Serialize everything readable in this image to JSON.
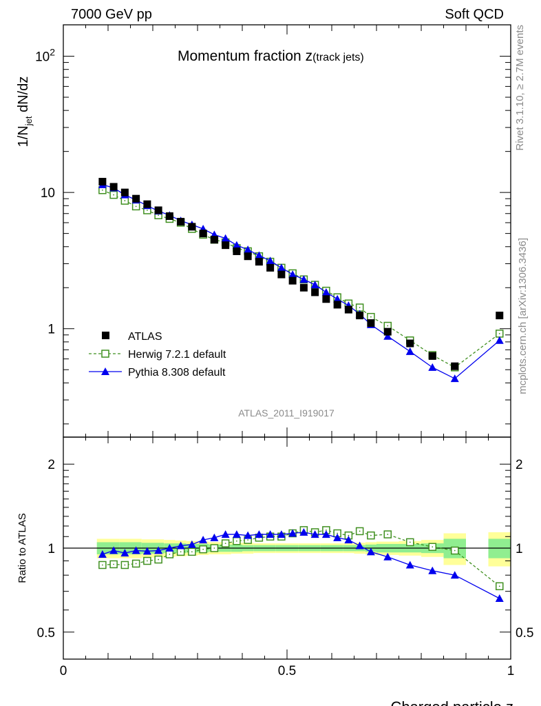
{
  "header": {
    "left": "7000 GeV pp",
    "right": "Soft QCD"
  },
  "plot_title": "Momentum fraction z",
  "plot_title_sub": "(track jets)",
  "analysis_id": "ATLAS_2011_I919017",
  "side_labels": {
    "rivet": "Rivet 3.1.10, ≥ 2.7M events",
    "mcplots": "mcplots.cern.ch [arXiv:1306.3436]"
  },
  "main_ylabel": "1/N_jet dN/dz",
  "ratio_ylabel": "Ratio to ATLAS",
  "xlabel": "Charged particle z",
  "x_ticks": [
    "0",
    "0.5",
    "1"
  ],
  "main_y_ticks": [
    "1",
    "10",
    "10^2"
  ],
  "ratio_y_ticks": [
    "0.5",
    "1",
    "2"
  ],
  "legend": {
    "atlas": "ATLAS",
    "herwig": "Herwig 7.2.1 default",
    "pythia": "Pythia 8.308 default"
  },
  "colors": {
    "atlas": "#000000",
    "herwig": "#3f8f1f",
    "pythia": "#0000ee",
    "band_inner": "#90ee90",
    "band_outer": "#ffff99"
  },
  "chart_data": [
    {
      "type": "scatter",
      "panel": "main",
      "xlabel": "Charged particle z",
      "ylabel": "1/N_jet dN/dz",
      "xlim": [
        0,
        1
      ],
      "ylim": [
        0.16,
        170
      ],
      "yscale": "log",
      "x": [
        0.0875,
        0.1125,
        0.1375,
        0.1625,
        0.1875,
        0.2125,
        0.2375,
        0.2625,
        0.2875,
        0.3125,
        0.3375,
        0.3625,
        0.3875,
        0.4125,
        0.4375,
        0.4625,
        0.4875,
        0.5125,
        0.5375,
        0.5625,
        0.5875,
        0.6125,
        0.6375,
        0.6625,
        0.6875,
        0.725,
        0.775,
        0.825,
        0.875,
        0.975
      ],
      "series": [
        {
          "name": "ATLAS",
          "values": [
            12.0,
            11.0,
            10.0,
            9.0,
            8.2,
            7.4,
            6.7,
            6.1,
            5.6,
            5.0,
            4.5,
            4.1,
            3.7,
            3.4,
            3.1,
            2.8,
            2.5,
            2.25,
            2.0,
            1.85,
            1.65,
            1.5,
            1.38,
            1.25,
            1.1,
            0.95,
            0.78,
            0.63,
            0.53,
            1.25
          ]
        },
        {
          "name": "Herwig 7.2.1 default",
          "values": [
            10.4,
            9.6,
            8.7,
            7.9,
            7.4,
            6.8,
            6.4,
            6.0,
            5.4,
            4.9,
            4.5,
            4.3,
            3.9,
            3.7,
            3.4,
            3.1,
            2.8,
            2.55,
            2.3,
            2.1,
            1.9,
            1.7,
            1.53,
            1.43,
            1.22,
            1.05,
            0.82,
            0.64,
            0.52,
            0.92
          ]
        },
        {
          "name": "Pythia 8.308 default",
          "values": [
            11.4,
            10.8,
            9.6,
            8.8,
            8.0,
            7.3,
            6.8,
            6.2,
            5.8,
            5.4,
            4.9,
            4.6,
            4.1,
            3.8,
            3.45,
            3.15,
            2.8,
            2.5,
            2.3,
            2.1,
            1.85,
            1.65,
            1.48,
            1.28,
            1.07,
            0.88,
            0.68,
            0.52,
            0.43,
            0.82
          ]
        }
      ]
    },
    {
      "type": "line",
      "panel": "ratio",
      "xlabel": "Charged particle z",
      "ylabel": "Ratio to ATLAS",
      "xlim": [
        0,
        1
      ],
      "ylim": [
        0.4,
        2.5
      ],
      "yscale": "log",
      "x": [
        0.0875,
        0.1125,
        0.1375,
        0.1625,
        0.1875,
        0.2125,
        0.2375,
        0.2625,
        0.2875,
        0.3125,
        0.3375,
        0.3625,
        0.3875,
        0.4125,
        0.4375,
        0.4625,
        0.4875,
        0.5125,
        0.5375,
        0.5625,
        0.5875,
        0.6125,
        0.6375,
        0.6625,
        0.6875,
        0.725,
        0.775,
        0.825,
        0.875,
        0.975
      ],
      "series": [
        {
          "name": "Herwig 7.2.1 default",
          "values": [
            0.87,
            0.875,
            0.87,
            0.88,
            0.9,
            0.91,
            0.95,
            0.97,
            0.97,
            0.99,
            1.0,
            1.04,
            1.06,
            1.07,
            1.09,
            1.1,
            1.1,
            1.13,
            1.16,
            1.14,
            1.16,
            1.13,
            1.11,
            1.15,
            1.11,
            1.12,
            1.05,
            1.01,
            0.98,
            0.73
          ]
        },
        {
          "name": "Pythia 8.308 default",
          "values": [
            0.95,
            0.98,
            0.96,
            0.98,
            0.975,
            0.98,
            1.0,
            1.02,
            1.03,
            1.07,
            1.09,
            1.12,
            1.12,
            1.11,
            1.12,
            1.12,
            1.12,
            1.13,
            1.14,
            1.12,
            1.12,
            1.09,
            1.07,
            1.02,
            0.97,
            0.93,
            0.87,
            0.83,
            0.8,
            0.66
          ]
        }
      ],
      "band_edges": [
        0.075,
        0.1,
        0.125,
        0.15,
        0.175,
        0.2,
        0.225,
        0.25,
        0.275,
        0.3,
        0.325,
        0.35,
        0.375,
        0.4,
        0.425,
        0.45,
        0.475,
        0.5,
        0.525,
        0.55,
        0.575,
        0.6,
        0.625,
        0.65,
        0.675,
        0.7,
        0.75,
        0.8,
        0.85,
        0.9,
        0.95,
        1.0
      ],
      "band_inner_halfwidth": [
        0.05,
        0.05,
        0.05,
        0.05,
        0.045,
        0.045,
        0.04,
        0.04,
        0.035,
        0.035,
        0.03,
        0.03,
        0.03,
        0.025,
        0.025,
        0.025,
        0.025,
        0.025,
        0.025,
        0.025,
        0.025,
        0.025,
        0.025,
        0.025,
        0.03,
        0.035,
        0.035,
        0.04,
        0.08,
        0.0,
        0.08
      ],
      "band_outer_halfwidth": [
        0.08,
        0.08,
        0.08,
        0.08,
        0.075,
        0.075,
        0.07,
        0.065,
        0.06,
        0.055,
        0.05,
        0.05,
        0.045,
        0.045,
        0.04,
        0.04,
        0.04,
        0.04,
        0.04,
        0.04,
        0.04,
        0.04,
        0.04,
        0.045,
        0.05,
        0.055,
        0.06,
        0.07,
        0.13,
        0.0,
        0.14
      ]
    }
  ]
}
